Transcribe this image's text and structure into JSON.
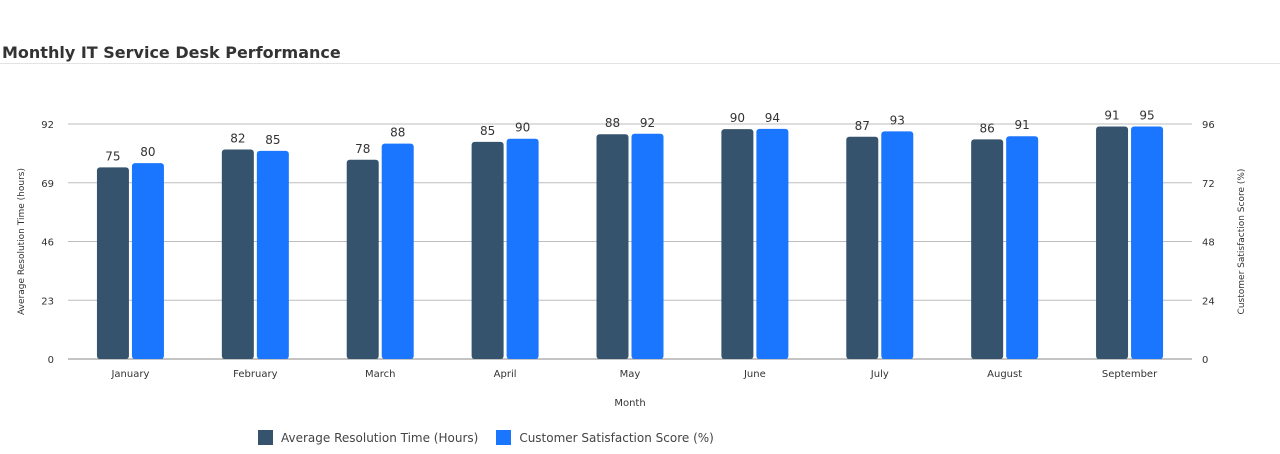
{
  "title": "Monthly IT Service Desk Performance",
  "colors": {
    "series1": "#36536d",
    "series2": "#1a75ff",
    "grid": "#bdbdbd",
    "text": "#333333"
  },
  "chart_data": {
    "type": "bar",
    "categories": [
      "January",
      "February",
      "March",
      "April",
      "May",
      "June",
      "July",
      "August",
      "September"
    ],
    "series": [
      {
        "name": "Average Resolution Time (Hours)",
        "values": [
          75,
          82,
          78,
          85,
          88,
          90,
          87,
          86,
          91
        ],
        "axis": "left"
      },
      {
        "name": "Customer Satisfaction Score (%)",
        "values": [
          80,
          85,
          88,
          90,
          92,
          94,
          93,
          91,
          95
        ],
        "axis": "right"
      }
    ],
    "xlabel": "Month",
    "ylabel": "Average Resolution Time (hours)",
    "y2label": "Customer Satisfaction Score (%)",
    "ylim": [
      0,
      92
    ],
    "y2lim": [
      0,
      96
    ],
    "yticks": [
      0,
      23,
      46,
      69,
      92
    ],
    "y2ticks": [
      0,
      24,
      48,
      72,
      96
    ],
    "grid": true,
    "legend": "bottom"
  }
}
